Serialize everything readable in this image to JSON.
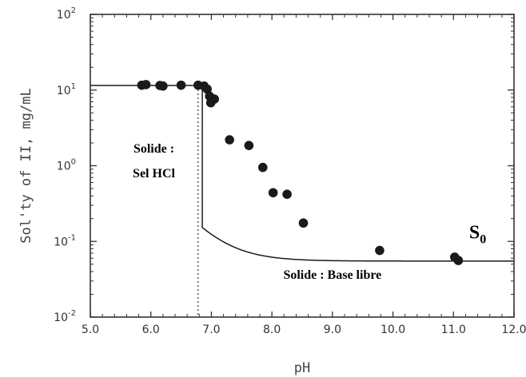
{
  "chart_data": {
    "type": "scatter",
    "xlabel": "pH",
    "ylabel": "Sol'ty of II, mg/mL",
    "xlim": [
      5.0,
      12.0
    ],
    "ylim": [
      0.01,
      100
    ],
    "yscale": "log",
    "x_ticks": [
      "5.0",
      "6.0",
      "7.0",
      "8.0",
      "9.0",
      "10.0",
      "11.0",
      "12.0"
    ],
    "y_ticks": [
      {
        "base": "10",
        "exp": "2"
      },
      {
        "base": "10",
        "exp": "1"
      },
      {
        "base": "10",
        "exp": "0"
      },
      {
        "base": "10",
        "exp": "-1"
      },
      {
        "base": "10",
        "exp": "-2"
      }
    ],
    "series": [
      {
        "points": [
          {
            "x": 5.85,
            "y": 11.6
          },
          {
            "x": 5.92,
            "y": 11.8
          },
          {
            "x": 6.15,
            "y": 11.5
          },
          {
            "x": 6.2,
            "y": 11.3
          },
          {
            "x": 6.5,
            "y": 11.6
          },
          {
            "x": 6.78,
            "y": 11.6
          },
          {
            "x": 6.88,
            "y": 11.3
          },
          {
            "x": 6.93,
            "y": 10.3
          },
          {
            "x": 6.97,
            "y": 8.3
          },
          {
            "x": 6.99,
            "y": 6.8
          },
          {
            "x": 7.05,
            "y": 7.6
          },
          {
            "x": 7.3,
            "y": 2.2
          },
          {
            "x": 7.62,
            "y": 1.85
          },
          {
            "x": 7.85,
            "y": 0.95
          },
          {
            "x": 8.02,
            "y": 0.44
          },
          {
            "x": 8.25,
            "y": 0.42
          },
          {
            "x": 8.52,
            "y": 0.175
          },
          {
            "x": 9.78,
            "y": 0.076
          },
          {
            "x": 11.02,
            "y": 0.062
          },
          {
            "x": 11.08,
            "y": 0.056
          }
        ]
      }
    ],
    "fit_curve": {
      "pHmax": 6.85,
      "plateau": 11.5,
      "s0": 0.055,
      "pKa": 7.1
    },
    "dotted_line_x": 6.78,
    "annotations": [
      {
        "text": "Solide :",
        "x": 6.05,
        "y": 1.5
      },
      {
        "text": "Sel HCl",
        "x": 6.05,
        "y": 0.7
      },
      {
        "text": "Solide : Base libre",
        "x": 9.0,
        "y": 0.032
      }
    ],
    "s0_label": {
      "text": "S",
      "sub": "0",
      "x": 11.4,
      "y": 0.11
    },
    "grid": false,
    "colors": {
      "markers": "#1a1a1a",
      "curve": "#1a1a1a",
      "axes": "#333333",
      "dotted": "#333333"
    }
  }
}
